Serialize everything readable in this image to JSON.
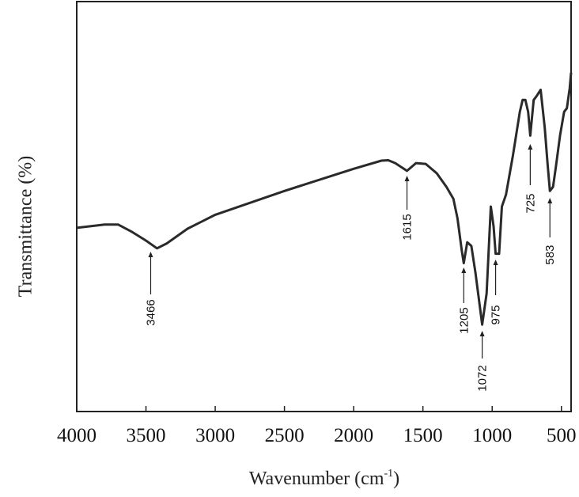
{
  "chart_data": {
    "type": "line",
    "ylabel": "Transmittance (%)",
    "xlabel": [
      "Wavenumber (cm",
      "-1",
      ")"
    ],
    "xlim": [
      4000,
      430
    ],
    "ylim": [
      0,
      100
    ],
    "xticks": [
      4000,
      3500,
      3000,
      2500,
      2000,
      1500,
      1000,
      500
    ],
    "color": "#2a2a2a",
    "x": [
      4000,
      3800,
      3700,
      3600,
      3500,
      3420,
      3350,
      3200,
      3000,
      2500,
      2000,
      1800,
      1750,
      1700,
      1615,
      1550,
      1480,
      1400,
      1330,
      1280,
      1250,
      1220,
      1205,
      1180,
      1150,
      1120,
      1072,
      1040,
      1010,
      990,
      975,
      950,
      930,
      900,
      850,
      800,
      780,
      760,
      740,
      725,
      700,
      680,
      650,
      620,
      600,
      583,
      560,
      540,
      510,
      480,
      460,
      440,
      430
    ],
    "values": [
      44.8,
      45.6,
      45.6,
      43.8,
      41.7,
      39.8,
      41,
      44.6,
      48,
      53.8,
      59.2,
      61.2,
      61.3,
      60.6,
      58.7,
      60.6,
      60.4,
      58.1,
      54.8,
      51.9,
      47.1,
      39.4,
      36.2,
      41.3,
      40.4,
      33.7,
      21.2,
      28.8,
      50,
      45.2,
      38.5,
      38.5,
      50,
      52.9,
      62.5,
      73.1,
      76,
      76,
      73.1,
      67.3,
      76,
      76.9,
      78.5,
      69.2,
      60.6,
      53.8,
      54.8,
      59.6,
      67.3,
      73.1,
      74,
      78.8,
      82.7
    ],
    "peaks": [
      3466,
      1615,
      1205,
      1072,
      975,
      725,
      583
    ]
  }
}
